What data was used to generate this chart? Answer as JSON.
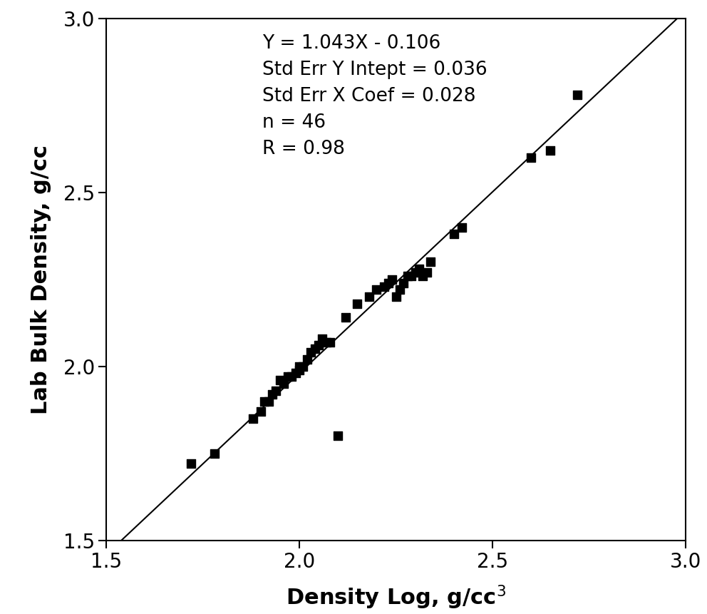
{
  "x_data": [
    1.72,
    1.78,
    1.88,
    1.9,
    1.91,
    1.92,
    1.93,
    1.94,
    1.95,
    1.96,
    1.97,
    1.98,
    1.99,
    2.0,
    2.0,
    2.01,
    2.02,
    2.03,
    2.04,
    2.05,
    2.06,
    2.07,
    2.08,
    2.1,
    2.12,
    2.15,
    2.18,
    2.2,
    2.22,
    2.23,
    2.24,
    2.25,
    2.26,
    2.27,
    2.28,
    2.29,
    2.3,
    2.31,
    2.32,
    2.33,
    2.34,
    2.4,
    2.42,
    2.6,
    2.65,
    2.72
  ],
  "y_data": [
    1.72,
    1.75,
    1.85,
    1.87,
    1.9,
    1.9,
    1.92,
    1.93,
    1.96,
    1.95,
    1.97,
    1.97,
    1.98,
    2.0,
    1.99,
    2.0,
    2.02,
    2.04,
    2.05,
    2.06,
    2.08,
    2.07,
    2.07,
    1.8,
    2.14,
    2.18,
    2.2,
    2.22,
    2.23,
    2.24,
    2.25,
    2.2,
    2.22,
    2.24,
    2.26,
    2.26,
    2.27,
    2.28,
    2.26,
    2.27,
    2.3,
    2.38,
    2.4,
    2.6,
    2.62,
    2.78
  ],
  "slope": 1.043,
  "intercept": -0.106,
  "xlim": [
    1.5,
    3.0
  ],
  "ylim": [
    1.5,
    3.0
  ],
  "xlabel": "Density Log, g/cc$^3$",
  "ylabel": "Lab Bulk Density, g/cc",
  "annotation_lines": [
    "Y = 1.043X - 0.106",
    "Std Err Y Intept = 0.036",
    "Std Err X Coef = 0.028",
    "n = 46",
    "R = 0.98"
  ],
  "marker_color": "#000000",
  "line_color": "#000000",
  "bg_color": "#ffffff",
  "tick_fontsize": 20,
  "label_fontsize": 22,
  "annotation_fontsize": 19,
  "xticks": [
    1.5,
    2.0,
    2.5,
    3.0
  ],
  "yticks": [
    1.5,
    2.0,
    2.5,
    3.0
  ]
}
